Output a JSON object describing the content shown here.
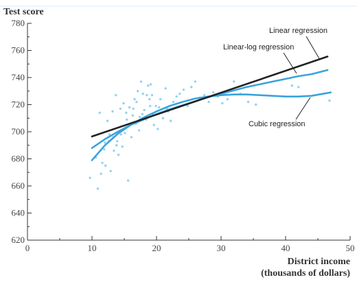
{
  "chart_data": {
    "type": "scatter",
    "ylabel": "Test score",
    "xlabel_line1": "District income",
    "xlabel_line2": "(thousands of dollars)",
    "xlim": [
      0,
      50
    ],
    "ylim": [
      620,
      780
    ],
    "x_ticks": [
      0,
      10,
      20,
      30,
      40,
      50
    ],
    "y_ticks": [
      620,
      640,
      660,
      680,
      700,
      720,
      740,
      760,
      780
    ],
    "grid": false,
    "colors": {
      "points": "#93d2f0",
      "linear": "#222222",
      "fits": "#3aa3dc",
      "axis": "#333333"
    },
    "series": [
      {
        "name": "Linear regression",
        "kind": "line",
        "color": "#222222",
        "x": [
          10,
          46.5
        ],
        "y": [
          696.5,
          755.5
        ]
      },
      {
        "name": "Linear-log regression",
        "kind": "line",
        "color": "#3aa3dc",
        "x": [
          10,
          12,
          14,
          16,
          18,
          20,
          22,
          24,
          26,
          28,
          30,
          32,
          34,
          36,
          38,
          40,
          42,
          44,
          46.5
        ],
        "y": [
          688,
          694.5,
          700,
          705,
          709,
          713,
          716.5,
          719.5,
          722.5,
          725.5,
          728,
          730.5,
          733,
          735,
          737,
          739,
          741,
          742.5,
          745.5
        ]
      },
      {
        "name": "Cubic regression",
        "kind": "line",
        "color": "#3aa3dc",
        "x": [
          10,
          12,
          14,
          16,
          18,
          20,
          22,
          24,
          26,
          28,
          30,
          32,
          34,
          36,
          38,
          40,
          42,
          44,
          47
        ],
        "y": [
          679,
          690,
          698.5,
          705,
          710.5,
          715,
          719,
          722,
          724.5,
          726,
          727,
          727.5,
          727.5,
          727,
          726.5,
          726,
          726,
          726.5,
          729
        ]
      },
      {
        "name": "",
        "kind": "points",
        "color": "#93d2f0",
        "x": [
          9.7,
          10.6,
          10.9,
          11.2,
          11.6,
          11.9,
          12.1,
          12.4,
          12.7,
          12.9,
          13.2,
          13.4,
          13.7,
          13.9,
          14.2,
          14.4,
          14.7,
          14.9,
          15.2,
          15.4,
          15.6,
          15.8,
          16.1,
          16.3,
          16.6,
          16.8,
          17.1,
          17.3,
          17.6,
          17.8,
          18.1,
          18.4,
          18.7,
          19.0,
          19.3,
          19.6,
          19.9,
          20.2,
          20.6,
          21.0,
          21.4,
          21.8,
          22.2,
          22.6,
          23.1,
          23.6,
          24.2,
          24.8,
          25.4,
          26.0,
          26.7,
          27.4,
          28.1,
          28.8,
          29.5,
          30.2,
          31.0,
          32.0,
          33.0,
          34.2,
          35.4,
          41.0,
          42.0,
          46.8,
          12.0,
          14.5,
          15.3,
          16.9,
          13.3,
          18.5,
          19.4,
          17.4,
          15.9,
          14.1,
          12.6,
          20.4,
          16.4,
          18.9,
          11.4,
          13.8,
          15.1,
          17.9,
          21.6,
          19.1
        ],
        "y": [
          666,
          681,
          658,
          714,
          677,
          687,
          675,
          708,
          698,
          671,
          715,
          686,
          727,
          693,
          700,
          717,
          689,
          721,
          703,
          709,
          664,
          718,
          696,
          712,
          724,
          706,
          730,
          701,
          737,
          713,
          716,
          709,
          734,
          719,
          727,
          705,
          719,
          702,
          724,
          710,
          732,
          715,
          708,
          722,
          726,
          728,
          731,
          719,
          733,
          737,
          725,
          727,
          722,
          729,
          726,
          721,
          724,
          737,
          728,
          722,
          720,
          734,
          733,
          723,
          692,
          698,
          714,
          722,
          696,
          727,
          713,
          711,
          705,
          683,
          693,
          718,
          717,
          724,
          669,
          690,
          699,
          728,
          717,
          735
        ]
      }
    ],
    "annotations": [
      {
        "text": "Linear regression",
        "series": "Linear regression"
      },
      {
        "text": "Linear-log regression",
        "series": "Linear-log regression"
      },
      {
        "text": "Cubic regression",
        "series": "Cubic regression"
      }
    ]
  }
}
